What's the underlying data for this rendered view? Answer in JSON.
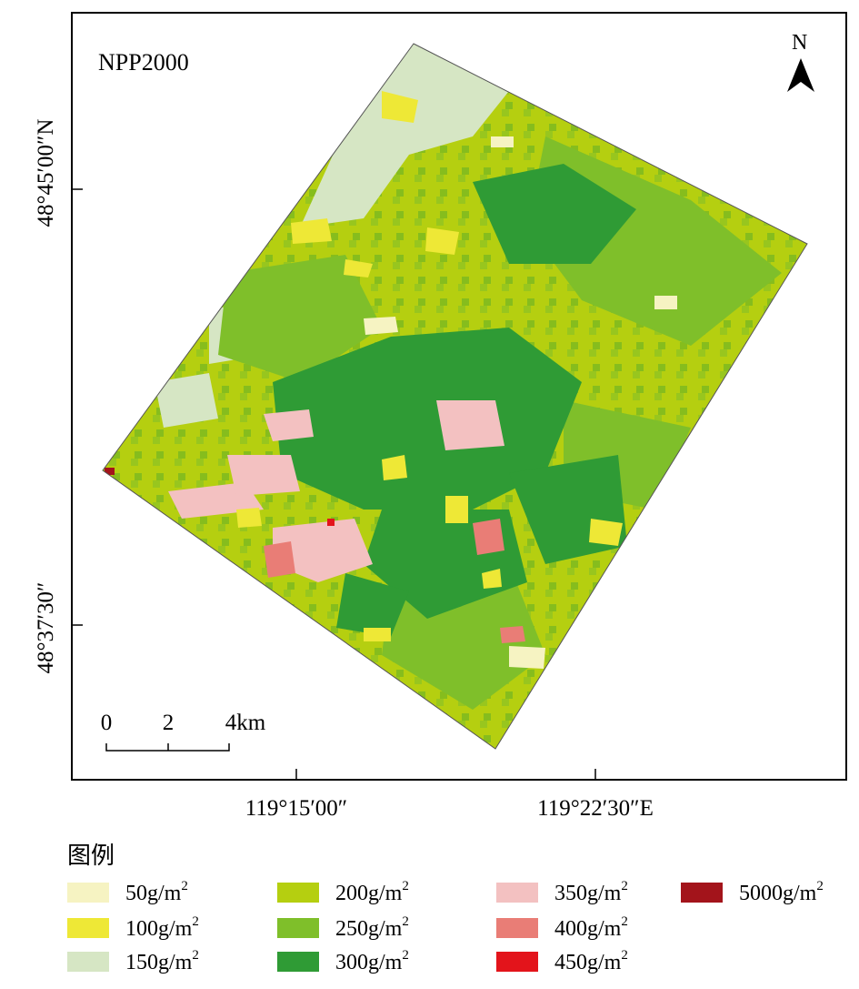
{
  "map": {
    "title": "NPP2000",
    "north_label": "N",
    "lat_labels": [
      "48°45′00″N",
      "48°37′30″"
    ],
    "lon_labels": [
      "119°15′00″",
      "119°22′30″E"
    ],
    "scale_bar": {
      "ticks": [
        "0",
        "2",
        "4km"
      ]
    }
  },
  "legend": {
    "title": "图例",
    "unit_suffix": "g/m",
    "unit_exponent": "2",
    "items": [
      {
        "value": "50",
        "color": "#f6f3c2"
      },
      {
        "value": "100",
        "color": "#eee836"
      },
      {
        "value": "150",
        "color": "#d6e6c4"
      },
      {
        "value": "200",
        "color": "#b5cf10"
      },
      {
        "value": "250",
        "color": "#7fbf2a"
      },
      {
        "value": "300",
        "color": "#2f9b35"
      },
      {
        "value": "350",
        "color": "#f3c1c1"
      },
      {
        "value": "400",
        "color": "#e97d76"
      },
      {
        "value": "450",
        "color": "#e3141b"
      },
      {
        "value": "5000",
        "color": "#a3141b"
      }
    ]
  }
}
